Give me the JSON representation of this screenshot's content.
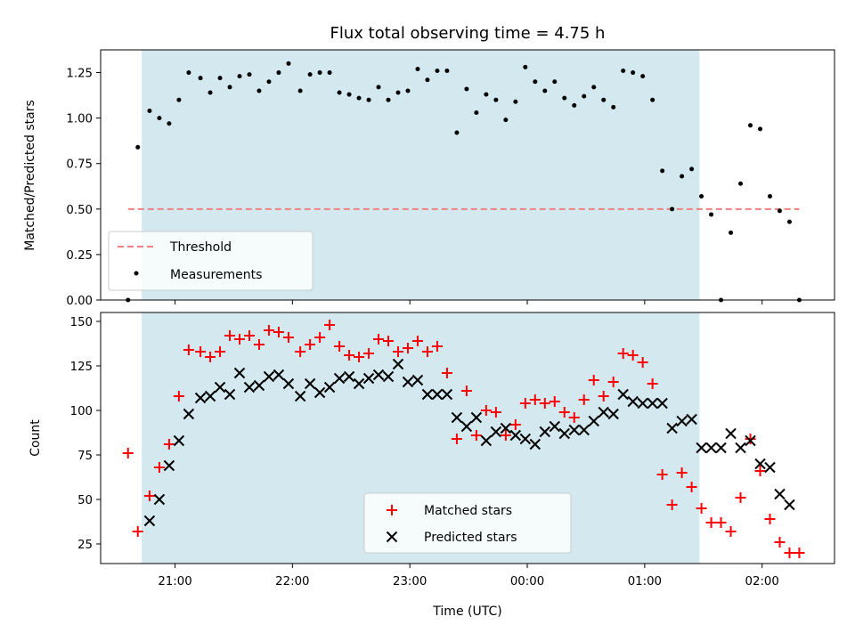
{
  "colors": {
    "observing_window": "#d3e9ef",
    "threshold": "#f08080",
    "measurements": "#000000",
    "matched": "#ff0000",
    "predicted": "#000000"
  },
  "chart_data": [
    {
      "type": "scatter",
      "title": "Flux total observing time = 4.75 h",
      "xlabel": "",
      "ylabel": "Matched/Predicted stars",
      "ylim": [
        0,
        1.375
      ],
      "xlim": [
        "20:22",
        "02:37"
      ],
      "yticks": [
        "0.00",
        "0.25",
        "0.50",
        "0.75",
        "1.00",
        "1.25"
      ],
      "grid": false,
      "legend_position": "lower-left",
      "observing_window": [
        "20:43",
        "01:28"
      ],
      "threshold": {
        "name": "Threshold",
        "value": 0.5,
        "x": [
          "20:36",
          "02:19"
        ]
      },
      "series": [
        {
          "name": "Measurements",
          "x": [
            "20:36",
            "20:41",
            "20:47",
            "20:52",
            "20:57",
            "21:02",
            "21:07",
            "21:13",
            "21:18",
            "21:23",
            "21:28",
            "21:33",
            "21:38",
            "21:43",
            "21:48",
            "21:53",
            "21:58",
            "22:04",
            "22:09",
            "22:14",
            "22:19",
            "22:24",
            "22:29",
            "22:34",
            "22:39",
            "22:44",
            "22:49",
            "22:54",
            "22:59",
            "23:04",
            "23:09",
            "23:14",
            "23:19",
            "23:24",
            "23:29",
            "23:34",
            "23:39",
            "23:44",
            "23:49",
            "23:54",
            "23:59",
            "00:04",
            "00:09",
            "00:14",
            "00:19",
            "00:24",
            "00:29",
            "00:34",
            "00:39",
            "00:44",
            "00:49",
            "00:54",
            "00:59",
            "01:04",
            "01:09",
            "01:14",
            "01:19",
            "01:24",
            "01:29",
            "01:34",
            "01:39",
            "01:44",
            "01:49",
            "01:54",
            "01:59",
            "02:04",
            "02:09",
            "02:14",
            "02:19"
          ],
          "values": [
            0.0,
            0.84,
            1.04,
            1.0,
            0.97,
            1.1,
            1.25,
            1.22,
            1.14,
            1.22,
            1.17,
            1.23,
            1.24,
            1.15,
            1.2,
            1.25,
            1.3,
            1.15,
            1.24,
            1.25,
            1.25,
            1.14,
            1.13,
            1.11,
            1.1,
            1.17,
            1.1,
            1.14,
            1.15,
            1.27,
            1.21,
            1.26,
            1.26,
            0.92,
            1.16,
            1.03,
            1.13,
            1.1,
            0.99,
            1.09,
            1.28,
            1.2,
            1.15,
            1.2,
            1.11,
            1.07,
            1.12,
            1.17,
            1.1,
            1.06,
            1.26,
            1.25,
            1.23,
            1.1,
            0.71,
            0.5,
            0.68,
            0.72,
            0.57,
            0.47,
            0.0,
            0.37,
            0.64,
            0.96,
            0.94,
            0.57,
            0.49,
            0.43,
            0.0
          ]
        }
      ]
    },
    {
      "type": "scatter",
      "title": "",
      "xlabel": "Time (UTC)",
      "ylabel": "Count",
      "ylim": [
        14,
        155
      ],
      "xlim": [
        "20:22",
        "02:37"
      ],
      "xticks": [
        "21:00",
        "22:00",
        "23:00",
        "00:00",
        "01:00",
        "02:00"
      ],
      "yticks": [
        "25",
        "50",
        "75",
        "100",
        "125",
        "150"
      ],
      "grid": false,
      "legend_position": "lower-center",
      "observing_window": [
        "20:43",
        "01:28"
      ],
      "series": [
        {
          "name": "Matched stars",
          "x": [
            "20:36",
            "20:41",
            "20:47",
            "20:52",
            "20:57",
            "21:02",
            "21:07",
            "21:13",
            "21:18",
            "21:23",
            "21:28",
            "21:33",
            "21:38",
            "21:43",
            "21:48",
            "21:53",
            "21:58",
            "22:04",
            "22:09",
            "22:14",
            "22:19",
            "22:24",
            "22:29",
            "22:34",
            "22:39",
            "22:44",
            "22:49",
            "22:54",
            "22:59",
            "23:04",
            "23:09",
            "23:14",
            "23:19",
            "23:24",
            "23:29",
            "23:34",
            "23:39",
            "23:44",
            "23:49",
            "23:54",
            "23:59",
            "00:04",
            "00:09",
            "00:14",
            "00:19",
            "00:24",
            "00:29",
            "00:34",
            "00:39",
            "00:44",
            "00:49",
            "00:54",
            "00:59",
            "01:04",
            "01:09",
            "01:14",
            "01:19",
            "01:24",
            "01:29",
            "01:34",
            "01:39",
            "01:44",
            "01:49",
            "01:54",
            "01:59",
            "02:04",
            "02:09",
            "02:14",
            "02:19"
          ],
          "values": [
            76,
            32,
            52,
            68,
            81,
            108,
            134,
            133,
            130,
            133,
            142,
            140,
            142,
            137,
            145,
            144,
            141,
            133,
            137,
            141,
            148,
            136,
            131,
            130,
            132,
            140,
            139,
            133,
            135,
            139,
            133,
            136,
            121,
            84,
            111,
            86,
            100,
            99,
            86,
            92,
            104,
            106,
            104,
            105,
            99,
            96,
            106,
            117,
            108,
            116,
            132,
            131,
            127,
            115,
            64,
            47,
            65,
            57,
            45,
            37,
            37,
            32,
            51,
            84,
            66,
            39,
            26,
            20,
            20
          ]
        },
        {
          "name": "Predicted stars",
          "x": [
            "20:47",
            "20:52",
            "20:57",
            "21:02",
            "21:07",
            "21:13",
            "21:18",
            "21:23",
            "21:28",
            "21:33",
            "21:38",
            "21:43",
            "21:48",
            "21:53",
            "21:58",
            "22:04",
            "22:09",
            "22:14",
            "22:19",
            "22:24",
            "22:29",
            "22:34",
            "22:39",
            "22:44",
            "22:49",
            "22:54",
            "22:59",
            "23:04",
            "23:09",
            "23:14",
            "23:19",
            "23:24",
            "23:29",
            "23:34",
            "23:39",
            "23:44",
            "23:49",
            "23:54",
            "23:59",
            "00:04",
            "00:09",
            "00:14",
            "00:19",
            "00:24",
            "00:29",
            "00:34",
            "00:39",
            "00:44",
            "00:49",
            "00:54",
            "00:59",
            "01:04",
            "01:09",
            "01:14",
            "01:19",
            "01:24",
            "01:29",
            "01:34",
            "01:39",
            "01:44",
            "01:49",
            "01:54",
            "01:59",
            "02:04",
            "02:09",
            "02:14"
          ],
          "values": [
            38,
            50,
            69,
            83,
            98,
            107,
            108,
            113,
            109,
            121,
            113,
            114,
            119,
            120,
            115,
            108,
            115,
            110,
            113,
            118,
            119,
            115,
            118,
            120,
            119,
            126,
            116,
            117,
            109,
            109,
            109,
            96,
            91,
            96,
            83,
            88,
            90,
            86,
            84,
            81,
            88,
            91,
            87,
            89,
            89,
            94,
            99,
            98,
            109,
            105,
            104,
            104,
            104,
            90,
            94,
            95,
            79,
            79,
            79,
            87,
            79,
            83,
            70,
            68,
            53,
            47
          ]
        }
      ]
    }
  ]
}
